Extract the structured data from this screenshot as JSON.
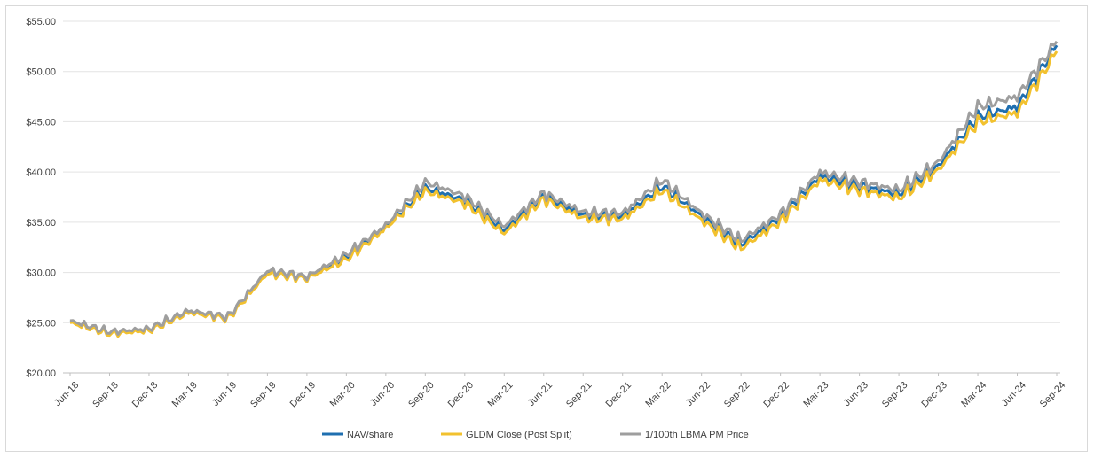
{
  "chart_data": {
    "type": "line",
    "title": "",
    "xlabel": "",
    "ylabel": "",
    "ylim": [
      20,
      55
    ],
    "y_ticks": [
      "$20.00",
      "$25.00",
      "$30.00",
      "$35.00",
      "$40.00",
      "$45.00",
      "$50.00",
      "$55.00"
    ],
    "y_tick_values": [
      20,
      25,
      30,
      35,
      40,
      45,
      50,
      55
    ],
    "x": [
      "Jun-18",
      "Sep-18",
      "Dec-18",
      "Mar-19",
      "Jun-19",
      "Sep-19",
      "Dec-19",
      "Mar-20",
      "Jun-20",
      "Sep-20",
      "Dec-20",
      "Mar-21",
      "Jun-21",
      "Sep-21",
      "Dec-21",
      "Mar-22",
      "Jun-22",
      "Sep-22",
      "Dec-22",
      "Mar-23",
      "Jun-23",
      "Sep-23",
      "Dec-23",
      "Mar-24",
      "Jun-24",
      "Sep-24"
    ],
    "grid": true,
    "legend_position": "bottom",
    "series": [
      {
        "name": "NAV/share",
        "color": "#1f6fb0",
        "values": [
          25.1,
          24.0,
          24.3,
          26.1,
          25.5,
          30.0,
          29.5,
          31.5,
          34.5,
          38.4,
          37.2,
          34.2,
          37.6,
          35.7,
          35.6,
          38.6,
          35.6,
          32.8,
          35.5,
          39.6,
          38.6,
          37.8,
          40.6,
          45.5,
          46.5,
          52.6
        ]
      },
      {
        "name": "GLDM Close (Post Split)",
        "color": "#f2c12e",
        "values": [
          25.0,
          23.9,
          24.2,
          26.0,
          25.4,
          29.9,
          29.4,
          31.3,
          34.4,
          38.1,
          36.9,
          33.9,
          37.3,
          35.4,
          35.3,
          38.2,
          35.2,
          32.4,
          35.1,
          39.2,
          38.2,
          37.4,
          40.2,
          45.0,
          45.9,
          52.0
        ]
      },
      {
        "name": "1/100th LBMA PM Price",
        "color": "#9e9e9e",
        "values": [
          25.2,
          24.1,
          24.4,
          26.2,
          25.6,
          30.2,
          29.6,
          31.8,
          34.7,
          39.0,
          37.6,
          34.6,
          37.9,
          36.0,
          35.9,
          39.2,
          35.9,
          33.2,
          35.8,
          40.0,
          39.0,
          38.2,
          41.0,
          46.5,
          47.5,
          53.0
        ]
      }
    ]
  }
}
